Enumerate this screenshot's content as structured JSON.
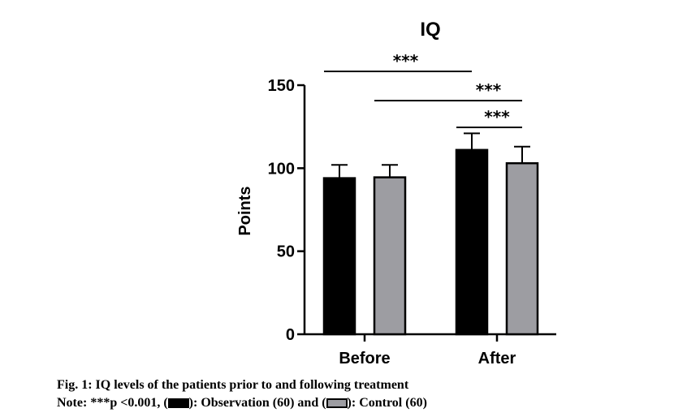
{
  "chart_data": {
    "type": "bar",
    "title": "IQ",
    "ylabel": "Points",
    "xlabel": "",
    "ylim": [
      0,
      150
    ],
    "yticks": [
      0,
      50,
      100,
      150
    ],
    "categories": [
      "Before",
      "After"
    ],
    "series": [
      {
        "name": "Observation (60)",
        "color": "#000000",
        "values": [
          94,
          111
        ],
        "errors": [
          8,
          10
        ]
      },
      {
        "name": "Control (60)",
        "color": "#9d9da2",
        "values": [
          94.5,
          103
        ],
        "errors": [
          7.5,
          10
        ]
      }
    ],
    "significance": [
      {
        "from": "Before:Observation (60)",
        "to": "After:Observation (60)",
        "label": "***"
      },
      {
        "from": "Before:Control (60)",
        "to": "After:Control (60)",
        "label": "***"
      },
      {
        "from": "After:Observation (60)",
        "to": "After:Control (60)",
        "label": "***"
      }
    ]
  },
  "caption": {
    "figure": "Fig. 1: IQ levels of the patients prior to and following treatment",
    "note_prefix": "Note: ***p <0.001, (",
    "note_mid1": "): Observation (60) and (",
    "note_end": "): Control (60)"
  }
}
